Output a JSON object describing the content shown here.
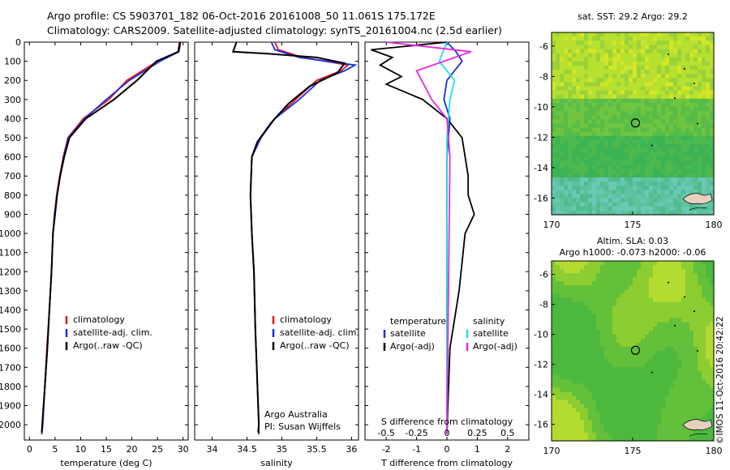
{
  "header": {
    "line1": "Argo profile: CS 5903701_182 06-Oct-2016 20161008_50 11.061S 175.172E",
    "line2": "Climatology: CARS2009. Satellite-adjusted climatology: synTS_20161004.nc (2.5d earlier)"
  },
  "credit": "©IMOS 11-Oct-2016 20:42:22",
  "colors": {
    "climatology": "#e8141c",
    "satellite": "#1a2ee0",
    "argo": "#000000",
    "sal_satellite": "#22dde8",
    "sal_argo": "#e628e0"
  },
  "chart_data": [
    {
      "id": "temperature",
      "type": "line",
      "xlabel": "temperature (deg C)",
      "ylabel": "",
      "xlim": [
        -1,
        31
      ],
      "ylim": [
        2080,
        0
      ],
      "xticks": [
        "0",
        "5",
        "10",
        "15",
        "20",
        "25",
        "30"
      ],
      "xtick_values": [
        0,
        5,
        10,
        15,
        20,
        25,
        30
      ],
      "yticks": [
        "0",
        "100",
        "200",
        "300",
        "400",
        "500",
        "600",
        "700",
        "800",
        "900",
        "1000",
        "1100",
        "1200",
        "1300",
        "1400",
        "1500",
        "1600",
        "1700",
        "1800",
        "1900",
        "2000"
      ],
      "ytick_values": [
        0,
        100,
        200,
        300,
        400,
        500,
        600,
        700,
        800,
        900,
        1000,
        1100,
        1200,
        1300,
        1400,
        1500,
        1600,
        1700,
        1800,
        1900,
        2000
      ],
      "legend": [
        "climatology",
        "satellite-adj. clim.",
        "Argo(..raw -QC)"
      ],
      "series": [
        {
          "name": "climatology",
          "color": "#e8141c",
          "points": [
            [
              29.3,
              0
            ],
            [
              29.0,
              50
            ],
            [
              25.0,
              100
            ],
            [
              19.0,
              200
            ],
            [
              15.5,
              300
            ],
            [
              10.5,
              400
            ],
            [
              7.5,
              500
            ],
            [
              6.6,
              600
            ],
            [
              5.9,
              700
            ],
            [
              5.3,
              800
            ],
            [
              4.9,
              900
            ],
            [
              4.6,
              1000
            ],
            [
              4.3,
              1200
            ],
            [
              3.9,
              1400
            ],
            [
              3.4,
              1600
            ],
            [
              3.0,
              1800
            ],
            [
              2.5,
              2000
            ],
            [
              2.4,
              2050
            ]
          ]
        },
        {
          "name": "satellite-adj. clim.",
          "color": "#1a2ee0",
          "points": [
            [
              29.5,
              0
            ],
            [
              29.2,
              50
            ],
            [
              25.5,
              100
            ],
            [
              19.5,
              200
            ],
            [
              15.0,
              300
            ],
            [
              10.8,
              400
            ],
            [
              7.6,
              500
            ],
            [
              6.7,
              600
            ],
            [
              6.0,
              700
            ],
            [
              5.4,
              800
            ],
            [
              4.9,
              900
            ],
            [
              4.6,
              1000
            ],
            [
              4.3,
              1200
            ],
            [
              3.9,
              1400
            ],
            [
              3.5,
              1600
            ],
            [
              3.0,
              1800
            ],
            [
              2.6,
              2000
            ],
            [
              2.4,
              2050
            ]
          ]
        },
        {
          "name": "Argo(..raw -QC)",
          "color": "#000000",
          "points": [
            [
              29.4,
              0
            ],
            [
              29.1,
              50
            ],
            [
              24.8,
              100
            ],
            [
              21.0,
              200
            ],
            [
              16.5,
              300
            ],
            [
              11.0,
              400
            ],
            [
              7.8,
              500
            ],
            [
              6.8,
              600
            ],
            [
              6.0,
              700
            ],
            [
              5.4,
              800
            ],
            [
              5.0,
              900
            ],
            [
              4.6,
              1000
            ],
            [
              4.3,
              1200
            ],
            [
              3.9,
              1400
            ],
            [
              3.5,
              1600
            ],
            [
              3.0,
              1800
            ],
            [
              2.5,
              2000
            ],
            [
              2.4,
              2040
            ]
          ]
        }
      ]
    },
    {
      "id": "salinity",
      "type": "line",
      "xlabel": "salinity",
      "xlim": [
        33.75,
        36.1
      ],
      "ylim": [
        2080,
        0
      ],
      "xticks": [
        "34",
        "34.5",
        "35",
        "35.5",
        "36"
      ],
      "xtick_values": [
        34,
        34.5,
        35,
        35.5,
        36
      ],
      "legend": [
        "climatology",
        "satellite-adj. clim.",
        "Argo(..raw -QC)"
      ],
      "annotation": [
        "Argo Australia",
        "PI: Susan Wijffels"
      ],
      "series": [
        {
          "name": "climatology",
          "color": "#e8141c",
          "points": [
            [
              34.9,
              0
            ],
            [
              34.95,
              40
            ],
            [
              35.3,
              80
            ],
            [
              35.95,
              120
            ],
            [
              35.85,
              150
            ],
            [
              35.5,
              200
            ],
            [
              35.2,
              300
            ],
            [
              34.9,
              400
            ],
            [
              34.7,
              500
            ],
            [
              34.57,
              600
            ],
            [
              34.55,
              800
            ],
            [
              34.57,
              1000
            ],
            [
              34.6,
              1200
            ],
            [
              34.62,
              1500
            ],
            [
              34.65,
              1800
            ],
            [
              34.67,
              2000
            ],
            [
              34.67,
              2050
            ]
          ]
        },
        {
          "name": "satellite-adj. clim.",
          "color": "#1a2ee0",
          "points": [
            [
              34.85,
              0
            ],
            [
              34.9,
              40
            ],
            [
              35.25,
              80
            ],
            [
              36.05,
              120
            ],
            [
              35.9,
              150
            ],
            [
              35.55,
              200
            ],
            [
              35.25,
              300
            ],
            [
              34.9,
              400
            ],
            [
              34.7,
              500
            ],
            [
              34.57,
              600
            ],
            [
              34.55,
              800
            ],
            [
              34.57,
              1000
            ],
            [
              34.6,
              1200
            ],
            [
              34.62,
              1500
            ],
            [
              34.65,
              1800
            ],
            [
              34.67,
              2000
            ],
            [
              34.67,
              2050
            ]
          ]
        },
        {
          "name": "Argo(..raw -QC)",
          "color": "#000000",
          "points": [
            [
              34.35,
              0
            ],
            [
              34.3,
              50
            ],
            [
              34.8,
              60
            ],
            [
              35.5,
              80
            ],
            [
              35.9,
              110
            ],
            [
              35.8,
              160
            ],
            [
              35.4,
              230
            ],
            [
              35.1,
              320
            ],
            [
              34.85,
              420
            ],
            [
              34.65,
              520
            ],
            [
              34.57,
              600
            ],
            [
              34.55,
              800
            ],
            [
              34.57,
              1000
            ],
            [
              34.6,
              1200
            ],
            [
              34.62,
              1500
            ],
            [
              34.65,
              1800
            ],
            [
              34.67,
              2000
            ],
            [
              34.66,
              2040
            ]
          ]
        }
      ]
    },
    {
      "id": "difference",
      "type": "line",
      "xlabel": "T difference from climatology",
      "top_axis_label": "S difference from climatology",
      "xlim": [
        -2.7,
        2.7
      ],
      "ylim": [
        2080,
        0
      ],
      "xticks": [
        "-2",
        "-1",
        "0",
        "1",
        "2"
      ],
      "xtick_values": [
        -2,
        -1,
        0,
        1,
        2
      ],
      "sticks": [
        "-0.5",
        "-0.25",
        "0",
        "0.25",
        "0.5"
      ],
      "stick_values": [
        -0.5,
        -0.25,
        0,
        0.25,
        0.5
      ],
      "legend_left_title": "temperature",
      "legend_right_title": "salinity",
      "legend": [
        "satellite",
        "Argo(-adj)",
        "satellite",
        "Argo(-adj)"
      ],
      "series": [
        {
          "name": "satellite (T)",
          "color": "#1a2ee0",
          "points": [
            [
              0,
              0
            ],
            [
              0.3,
              50
            ],
            [
              0.5,
              100
            ],
            [
              0,
              200
            ],
            [
              -0.1,
              300
            ],
            [
              0.1,
              400
            ],
            [
              0,
              600
            ],
            [
              0,
              1000
            ],
            [
              0,
              2050
            ]
          ]
        },
        {
          "name": "Argo(-adj) (T)",
          "color": "#000000",
          "points": [
            [
              0,
              0
            ],
            [
              -2.5,
              40
            ],
            [
              -1.8,
              80
            ],
            [
              -2.2,
              120
            ],
            [
              -1.5,
              180
            ],
            [
              -2.0,
              220
            ],
            [
              -0.8,
              300
            ],
            [
              0,
              400
            ],
            [
              0.5,
              500
            ],
            [
              0.7,
              700
            ],
            [
              0.7,
              800
            ],
            [
              0.9,
              900
            ],
            [
              0.6,
              1000
            ],
            [
              0.4,
              1300
            ],
            [
              0.1,
              1600
            ],
            [
              0,
              2050
            ]
          ]
        },
        {
          "name": "satellite (S)",
          "color": "#22dde8",
          "points": [
            [
              0,
              0
            ],
            [
              -0.25,
              100
            ],
            [
              0.25,
              200
            ],
            [
              0.1,
              300
            ],
            [
              0,
              500
            ],
            [
              0,
              2050
            ]
          ]
        },
        {
          "name": "Argo(-adj) (S)",
          "color": "#e628e0",
          "points": [
            [
              -2.0,
              0
            ],
            [
              0.8,
              50
            ],
            [
              -1.0,
              150
            ],
            [
              -0.5,
              300
            ],
            [
              0,
              400
            ],
            [
              0.1,
              600
            ],
            [
              0,
              2050
            ]
          ]
        }
      ]
    },
    {
      "id": "sst-map",
      "type": "heatmap",
      "title": "sat. SST: 29.2  Argo: 29.2",
      "xticks": [
        "170",
        "175",
        "180"
      ],
      "yticks": [
        "-6",
        "-8",
        "-10",
        "-12",
        "-14",
        "-16"
      ],
      "xlim": [
        170,
        180
      ],
      "ylim": [
        -17.1,
        -5.1
      ],
      "marker": [
        175.172,
        -11.061
      ]
    },
    {
      "id": "sla-map",
      "type": "heatmap",
      "title_line1": "Altim. SLA: 0.03",
      "title_line2": "Argo h1000: -0.073 h2000: -0.06",
      "xticks": [
        "170",
        "175",
        "180"
      ],
      "yticks": [
        "-6",
        "-8",
        "-10",
        "-12",
        "-14",
        "-16"
      ],
      "xlim": [
        170,
        180
      ],
      "ylim": [
        -17.1,
        -5.1
      ],
      "marker": [
        175.172,
        -11.061
      ]
    }
  ]
}
